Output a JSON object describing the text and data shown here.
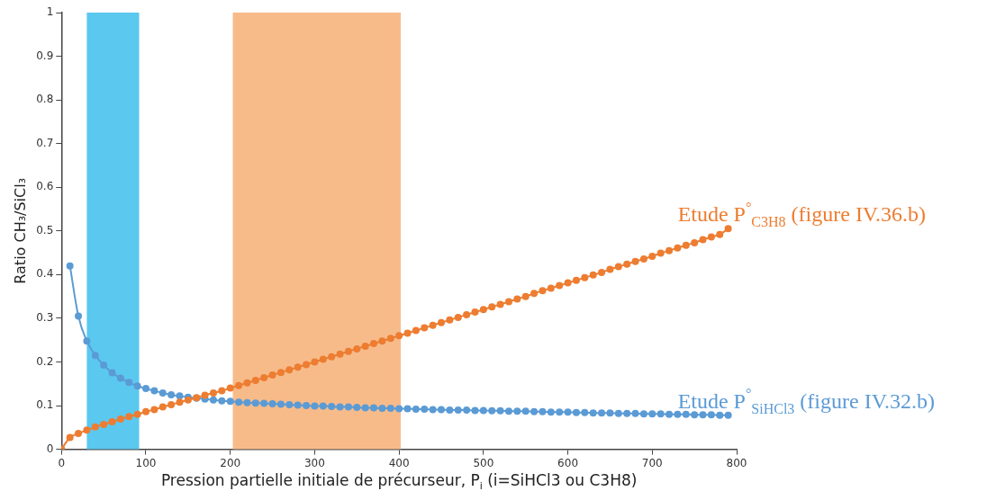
{
  "chart_data": {
    "type": "line",
    "xlabel": "Pression partielle initiale de précurseur, P$_{i}$ (i=SiHCl3 ou C3H8)",
    "ylabel": "Ratio CH₃/SiCl₃",
    "xlim": [
      0,
      800
    ],
    "xticks": [
      0,
      100,
      200,
      300,
      400,
      500,
      600,
      700,
      800
    ],
    "ylim": [
      0,
      1
    ],
    "yticks": [
      0,
      0.1,
      0.2,
      0.3,
      0.4,
      0.5,
      0.6,
      0.7,
      0.8,
      0.9,
      1
    ],
    "grid": false,
    "legend": false,
    "marker": "circle",
    "line_style": "solid",
    "series": [
      {
        "color": "#ed7d31",
        "x": [
          0,
          10,
          20,
          30,
          40,
          50,
          60,
          70,
          80,
          90,
          100,
          110,
          120,
          130,
          140,
          150,
          160,
          170,
          180,
          190,
          200,
          210,
          220,
          230,
          240,
          250,
          260,
          270,
          280,
          290,
          300,
          310,
          320,
          330,
          340,
          350,
          360,
          370,
          380,
          390,
          400,
          410,
          420,
          430,
          440,
          450,
          460,
          470,
          480,
          490,
          500,
          510,
          520,
          530,
          540,
          550,
          560,
          570,
          580,
          590,
          600,
          610,
          620,
          630,
          640,
          650,
          660,
          670,
          680,
          690,
          700,
          710,
          720,
          730,
          740,
          750,
          760,
          770,
          780,
          790
        ],
        "values": [
          0,
          0.027,
          0.036,
          0.044,
          0.051,
          0.057,
          0.063,
          0.069,
          0.075,
          0.08,
          0.086,
          0.091,
          0.097,
          0.102,
          0.108,
          0.113,
          0.118,
          0.124,
          0.129,
          0.134,
          0.14,
          0.146,
          0.152,
          0.158,
          0.164,
          0.17,
          0.176,
          0.182,
          0.188,
          0.194,
          0.2,
          0.206,
          0.212,
          0.218,
          0.224,
          0.23,
          0.236,
          0.242,
          0.248,
          0.254,
          0.26,
          0.266,
          0.272,
          0.278,
          0.284,
          0.29,
          0.296,
          0.302,
          0.308,
          0.314,
          0.32,
          0.326,
          0.332,
          0.338,
          0.344,
          0.35,
          0.357,
          0.363,
          0.369,
          0.375,
          0.381,
          0.387,
          0.393,
          0.399,
          0.405,
          0.412,
          0.418,
          0.424,
          0.43,
          0.436,
          0.442,
          0.449,
          0.455,
          0.461,
          0.467,
          0.473,
          0.48,
          0.486,
          0.492,
          0.505
        ]
      },
      {
        "color": "#5b9bd5",
        "x": [
          10,
          20,
          30,
          40,
          50,
          60,
          70,
          80,
          90,
          100,
          110,
          120,
          130,
          140,
          150,
          160,
          170,
          180,
          190,
          200,
          210,
          220,
          230,
          240,
          250,
          260,
          270,
          280,
          290,
          300,
          310,
          320,
          330,
          340,
          350,
          360,
          370,
          380,
          390,
          400,
          410,
          420,
          430,
          440,
          450,
          460,
          470,
          480,
          490,
          500,
          510,
          520,
          530,
          540,
          550,
          560,
          570,
          580,
          590,
          600,
          610,
          620,
          630,
          640,
          650,
          660,
          670,
          680,
          690,
          700,
          710,
          720,
          730,
          740,
          750,
          760,
          770,
          780,
          790
        ],
        "values": [
          0.42,
          0.305,
          0.248,
          0.215,
          0.193,
          0.175,
          0.163,
          0.153,
          0.145,
          0.139,
          0.134,
          0.129,
          0.125,
          0.122,
          0.119,
          0.117,
          0.115,
          0.113,
          0.111,
          0.11,
          0.108,
          0.107,
          0.106,
          0.105,
          0.104,
          0.103,
          0.102,
          0.101,
          0.1,
          0.099,
          0.099,
          0.098,
          0.097,
          0.097,
          0.096,
          0.095,
          0.095,
          0.094,
          0.094,
          0.093,
          0.093,
          0.092,
          0.092,
          0.091,
          0.091,
          0.09,
          0.09,
          0.09,
          0.089,
          0.089,
          0.088,
          0.088,
          0.087,
          0.087,
          0.087,
          0.086,
          0.086,
          0.085,
          0.085,
          0.085,
          0.084,
          0.084,
          0.083,
          0.083,
          0.083,
          0.082,
          0.082,
          0.082,
          0.081,
          0.081,
          0.081,
          0.08,
          0.08,
          0.08,
          0.079,
          0.079,
          0.079,
          0.078,
          0.078
        ]
      }
    ],
    "bands": [
      {
        "axis": "x",
        "from": 30,
        "to": 92,
        "color": "#5bc8f0"
      },
      {
        "axis": "x",
        "from": 203,
        "to": 402,
        "color": "#f7bb8a"
      }
    ],
    "annotations": [
      {
        "text": "Etude P$^{°}$$_{C3H8}$ (figure IV.36.b)",
        "x": 790,
        "y": 0.505
      },
      {
        "text": "Etude P$^{°}$$_{SiHCl3}$ (figure IV.32.b)",
        "x": 790,
        "y": 0.078
      }
    ]
  }
}
